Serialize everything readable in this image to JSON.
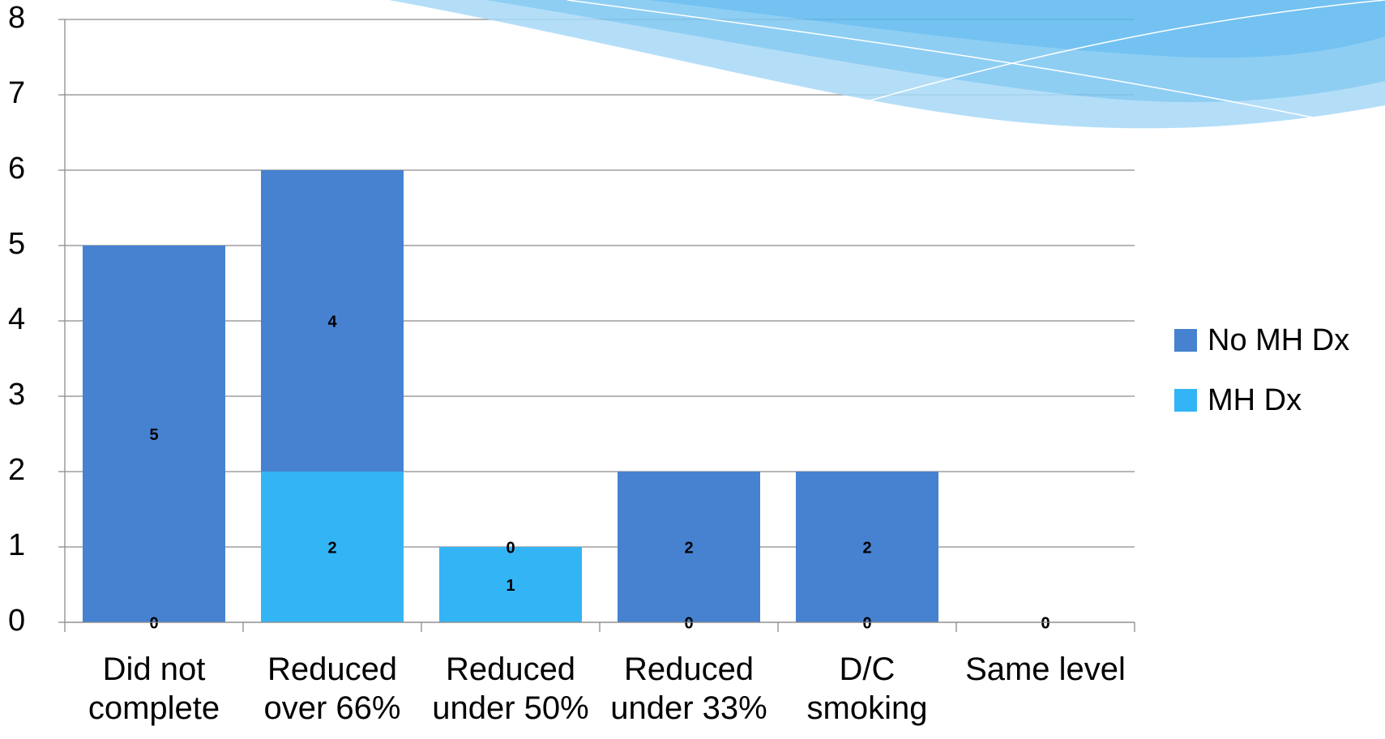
{
  "chart_data": {
    "type": "bar",
    "stacked": true,
    "categories": [
      "Did not\ncomplete",
      "Reduced\nover 66%",
      "Reduced\nunder 50%",
      "Reduced\nunder 33%",
      "D/C\nsmoking",
      "Same level"
    ],
    "series": [
      {
        "name": "MH Dx",
        "color": "#33b5f5",
        "values": [
          0,
          2,
          1,
          0,
          0,
          0
        ]
      },
      {
        "name": "No MH Dx",
        "color": "#4682d0",
        "values": [
          5,
          4,
          0,
          2,
          2,
          0
        ]
      }
    ],
    "ylim": [
      0,
      8
    ],
    "yticks": [
      0,
      1,
      2,
      3,
      4,
      5,
      6,
      7,
      8
    ],
    "grid": true,
    "legend": "right"
  }
}
